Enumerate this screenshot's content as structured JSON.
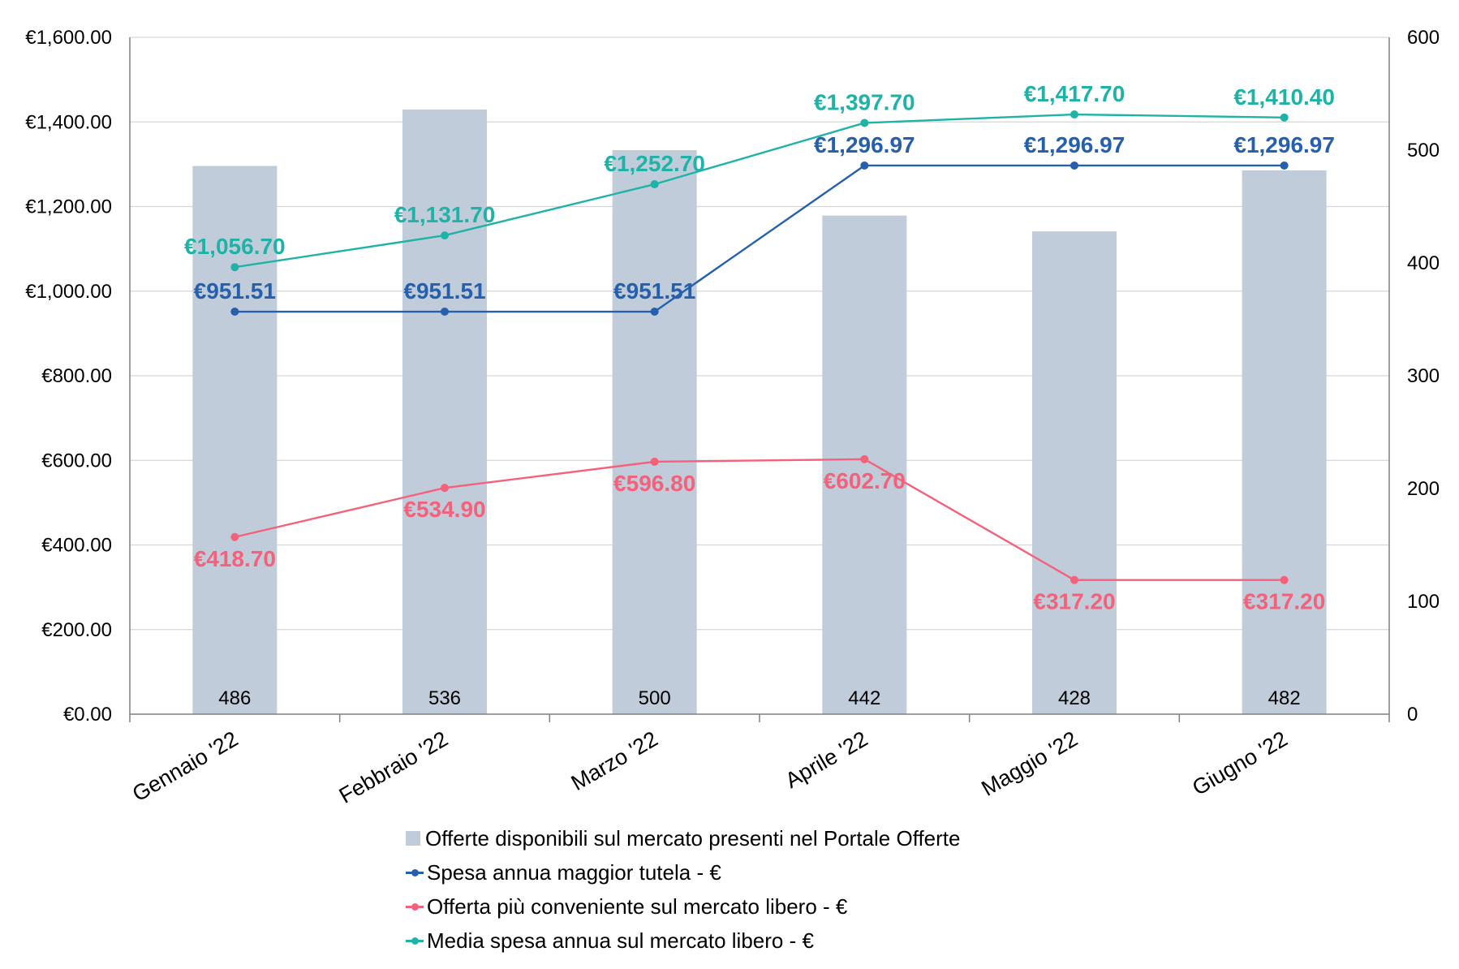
{
  "chart_data": {
    "type": "bar+line",
    "categories": [
      "Gennaio '22",
      "Febbraio '22",
      "Marzo '22",
      "Aprile '22",
      "Maggio '22",
      "Giugno '22"
    ],
    "bars": {
      "name": "Offerte disponibili sul mercato presenti nel Portale Offerte",
      "axis": "right",
      "values": [
        486,
        536,
        500,
        442,
        428,
        482
      ],
      "labels": [
        "486",
        "536",
        "500",
        "442",
        "428",
        "482"
      ],
      "color": "#c0ccd9"
    },
    "series": [
      {
        "name": "Spesa annua maggior tutela - €",
        "axis": "left",
        "values": [
          951.51,
          951.51,
          951.51,
          1296.97,
          1296.97,
          1296.97
        ],
        "labels": [
          "€951.51",
          "€951.51",
          "€951.51",
          "€1,296.97",
          "€1,296.97",
          "€1,296.97"
        ],
        "color": "#2660ad"
      },
      {
        "name": "Offerta più conveniente sul mercato libero - €",
        "axis": "left",
        "values": [
          418.7,
          534.9,
          596.8,
          602.7,
          317.2,
          317.2
        ],
        "labels": [
          "€418.70",
          "€534.90",
          "€596.80",
          "€602.70",
          "€317.20",
          "€317.20"
        ],
        "color": "#f5607a"
      },
      {
        "name": "Media spesa annua sul mercato libero - €",
        "axis": "left",
        "values": [
          1056.7,
          1131.7,
          1252.7,
          1397.7,
          1417.7,
          1410.4
        ],
        "labels": [
          "€1,056.70",
          "€1,131.70",
          "€1,252.70",
          "€1,397.70",
          "€1,417.70",
          "€1,410.40"
        ],
        "color": "#1fb3a8"
      }
    ],
    "y_left": {
      "ylim": [
        0,
        1600
      ],
      "ticks": [
        0,
        200,
        400,
        600,
        800,
        1000,
        1200,
        1400,
        1600
      ],
      "tick_labels": [
        "€0.00",
        "€200.00",
        "€400.00",
        "€600.00",
        "€800.00",
        "€1,000.00",
        "€1,200.00",
        "€1,400.00",
        "€1,600.00"
      ]
    },
    "y_right": {
      "ylim": [
        0,
        600
      ],
      "ticks": [
        0,
        100,
        200,
        300,
        400,
        500,
        600
      ],
      "tick_labels": [
        "0",
        "100",
        "200",
        "300",
        "400",
        "500",
        "600"
      ]
    },
    "grid": true,
    "legend_position": "bottom",
    "title": ""
  }
}
